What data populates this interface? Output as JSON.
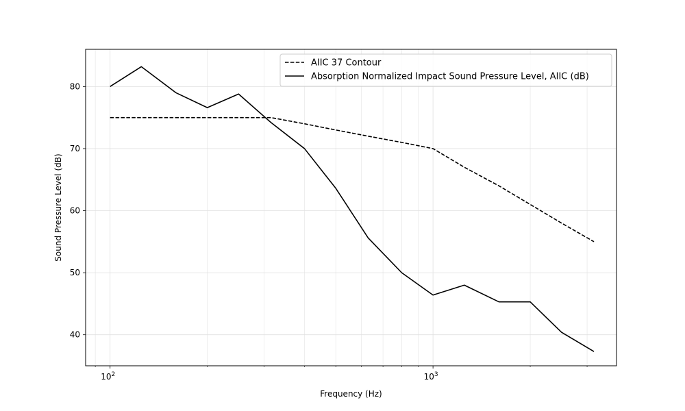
{
  "chart_data": {
    "type": "line",
    "title": "",
    "xlabel": "Frequency (Hz)",
    "ylabel": "Sound Pressure Level (dB)",
    "xscale": "log",
    "xlim": [
      84,
      3700
    ],
    "ylim": [
      35,
      86
    ],
    "grid": true,
    "legend_position": "top-right",
    "x_ticks": [
      {
        "value": 100,
        "base": "10",
        "exp": "2"
      },
      {
        "value": 1000,
        "base": "10",
        "exp": "3"
      }
    ],
    "y_ticks": [
      40,
      50,
      60,
      70,
      80
    ],
    "series": [
      {
        "name": "AIIC 37 Contour",
        "style": "dashed",
        "color": "#000000",
        "x": [
          100,
          125,
          160,
          200,
          250,
          315,
          400,
          500,
          630,
          800,
          1000,
          1250,
          1600,
          2000,
          2500,
          3150
        ],
        "y": [
          75,
          75,
          75,
          75,
          75,
          75,
          74,
          73,
          72,
          71,
          70,
          67,
          64,
          61,
          58,
          55
        ]
      },
      {
        "name": "Absorption Normalized Impact Sound Pressure Level, AIIC (dB)",
        "style": "solid",
        "color": "#000000",
        "x": [
          100,
          125,
          160,
          200,
          250,
          315,
          400,
          500,
          630,
          800,
          1000,
          1250,
          1600,
          2000,
          2500,
          3150
        ],
        "y": [
          80.0,
          83.2,
          79.0,
          76.6,
          78.8,
          74.2,
          70.0,
          63.6,
          55.6,
          50.0,
          46.4,
          48.0,
          45.3,
          45.3,
          40.4,
          37.3
        ]
      }
    ]
  }
}
